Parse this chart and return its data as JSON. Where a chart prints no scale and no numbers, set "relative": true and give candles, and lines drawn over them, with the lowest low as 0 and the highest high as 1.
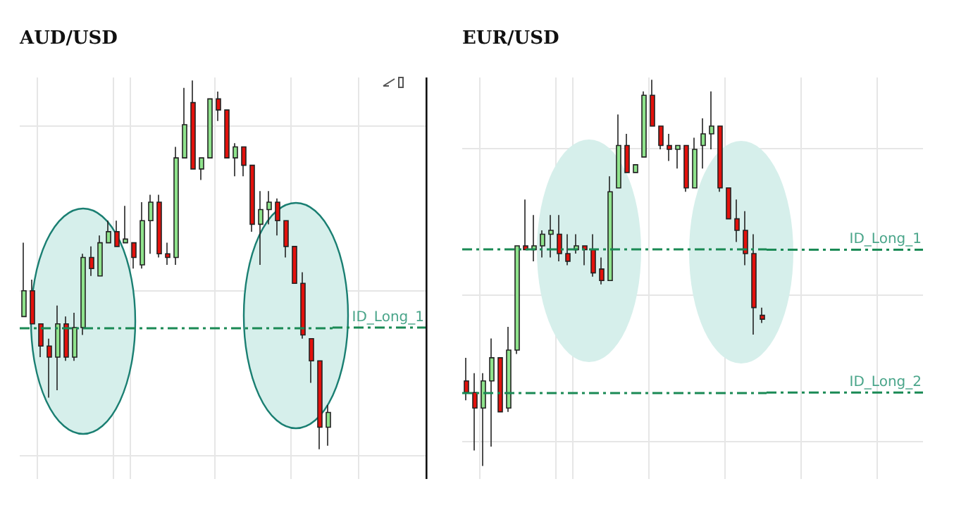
{
  "chart_data": [
    {
      "type": "candlestick",
      "title": "AUD/USD",
      "relative": true,
      "grid": true,
      "categories": [
        null,
        null,
        null,
        null,
        null,
        null,
        null,
        null,
        null,
        null,
        null,
        null,
        null,
        null,
        null,
        null,
        null,
        null,
        null,
        null,
        null,
        null,
        null,
        null,
        null,
        null,
        null,
        null,
        null,
        null,
        null,
        null,
        null,
        null,
        null,
        null,
        null
      ],
      "ohlc": [
        [
          0.36,
          0.56,
          0.36,
          0.43
        ],
        [
          0.43,
          0.46,
          0.34,
          0.34
        ],
        [
          0.34,
          0.34,
          0.25,
          0.28
        ],
        [
          0.28,
          0.3,
          0.14,
          0.25
        ],
        [
          0.25,
          0.39,
          0.16,
          0.34
        ],
        [
          0.34,
          0.36,
          0.24,
          0.25
        ],
        [
          0.25,
          0.37,
          0.24,
          0.33
        ],
        [
          0.33,
          0.53,
          0.31,
          0.52
        ],
        [
          0.52,
          0.55,
          0.47,
          0.49
        ],
        [
          0.47,
          0.58,
          0.47,
          0.56
        ],
        [
          0.56,
          0.62,
          0.56,
          0.59
        ],
        [
          0.59,
          0.62,
          0.55,
          0.55
        ],
        [
          0.56,
          0.66,
          0.56,
          0.57
        ],
        [
          0.56,
          0.56,
          0.49,
          0.52
        ],
        [
          0.5,
          0.67,
          0.49,
          0.62
        ],
        [
          0.62,
          0.69,
          0.53,
          0.67
        ],
        [
          0.67,
          0.69,
          0.52,
          0.53
        ],
        [
          0.53,
          0.56,
          0.5,
          0.52
        ],
        [
          0.52,
          0.82,
          0.5,
          0.79
        ],
        [
          0.79,
          0.98,
          0.79,
          0.88
        ],
        [
          0.94,
          1.0,
          0.76,
          0.76
        ],
        [
          0.76,
          0.79,
          0.73,
          0.79
        ],
        [
          0.79,
          0.95,
          0.79,
          0.95
        ],
        [
          0.95,
          0.97,
          0.89,
          0.92
        ],
        [
          0.92,
          0.92,
          0.79,
          0.79
        ],
        [
          0.79,
          0.83,
          0.74,
          0.82
        ],
        [
          0.82,
          0.82,
          0.74,
          0.77
        ],
        [
          0.77,
          0.77,
          0.59,
          0.61
        ],
        [
          0.61,
          0.7,
          0.5,
          0.65
        ],
        [
          0.65,
          0.7,
          0.61,
          0.67
        ],
        [
          0.67,
          0.68,
          0.58,
          0.62
        ],
        [
          0.62,
          0.62,
          0.52,
          0.55
        ],
        [
          0.55,
          0.55,
          0.45,
          0.45
        ],
        [
          0.45,
          0.48,
          0.3,
          0.31
        ],
        [
          0.3,
          0.3,
          0.18,
          0.24
        ],
        [
          0.24,
          0.24,
          0.0,
          0.06
        ],
        [
          0.06,
          0.12,
          0.01,
          0.1
        ]
      ],
      "ref_lines": [
        {
          "axis": "y",
          "value": 0.33,
          "label": "ID_Long_1",
          "color": "#1a8a55",
          "line_style": "dashed"
        }
      ]
    },
    {
      "type": "candlestick",
      "title": "EUR/USD",
      "relative": true,
      "grid": true,
      "categories": [
        null,
        null,
        null,
        null,
        null,
        null,
        null,
        null,
        null,
        null,
        null,
        null,
        null,
        null,
        null,
        null,
        null,
        null,
        null,
        null,
        null,
        null,
        null,
        null,
        null,
        null,
        null,
        null,
        null,
        null,
        null,
        null,
        null,
        null,
        null,
        null
      ],
      "ohlc": [
        [
          0.22,
          0.28,
          0.17,
          0.19
        ],
        [
          0.19,
          0.24,
          0.04,
          0.15
        ],
        [
          0.15,
          0.24,
          0.0,
          0.22
        ],
        [
          0.22,
          0.33,
          0.05,
          0.28
        ],
        [
          0.28,
          0.28,
          0.14,
          0.14
        ],
        [
          0.15,
          0.36,
          0.14,
          0.3
        ],
        [
          0.3,
          0.57,
          0.29,
          0.57
        ],
        [
          0.57,
          0.69,
          0.56,
          0.56
        ],
        [
          0.56,
          0.65,
          0.53,
          0.57
        ],
        [
          0.57,
          0.61,
          0.54,
          0.6
        ],
        [
          0.6,
          0.65,
          0.54,
          0.61
        ],
        [
          0.6,
          0.65,
          0.53,
          0.55
        ],
        [
          0.55,
          0.6,
          0.52,
          0.53
        ],
        [
          0.56,
          0.6,
          0.55,
          0.57
        ],
        [
          0.57,
          0.57,
          0.52,
          0.56
        ],
        [
          0.56,
          0.6,
          0.49,
          0.5
        ],
        [
          0.51,
          0.54,
          0.47,
          0.48
        ],
        [
          0.48,
          0.75,
          0.48,
          0.71
        ],
        [
          0.72,
          0.91,
          0.72,
          0.83
        ],
        [
          0.83,
          0.86,
          0.76,
          0.76
        ],
        [
          0.76,
          0.78,
          0.76,
          0.78
        ],
        [
          0.8,
          0.97,
          0.8,
          0.96
        ],
        [
          0.96,
          1.0,
          0.88,
          0.88
        ],
        [
          0.88,
          0.88,
          0.82,
          0.83
        ],
        [
          0.83,
          0.86,
          0.79,
          0.82
        ],
        [
          0.82,
          0.83,
          0.77,
          0.83
        ],
        [
          0.83,
          0.83,
          0.71,
          0.72
        ],
        [
          0.72,
          0.85,
          0.72,
          0.82
        ],
        [
          0.83,
          0.9,
          0.77,
          0.86
        ],
        [
          0.86,
          0.97,
          0.82,
          0.88
        ],
        [
          0.88,
          0.88,
          0.71,
          0.72
        ],
        [
          0.72,
          0.72,
          0.64,
          0.64
        ],
        [
          0.64,
          0.69,
          0.58,
          0.61
        ],
        [
          0.61,
          0.66,
          0.52,
          0.55
        ],
        [
          0.55,
          0.6,
          0.34,
          0.41
        ],
        [
          0.39,
          0.41,
          0.37,
          0.38
        ]
      ],
      "ref_lines": [
        {
          "axis": "y",
          "value": 0.56,
          "label": "ID_Long_1",
          "color": "#1a8a55",
          "line_style": "dashed"
        },
        {
          "axis": "y",
          "value": 0.19,
          "label": "ID_Long_2",
          "color": "#1a8a55",
          "line_style": "dashed"
        }
      ]
    }
  ]
}
